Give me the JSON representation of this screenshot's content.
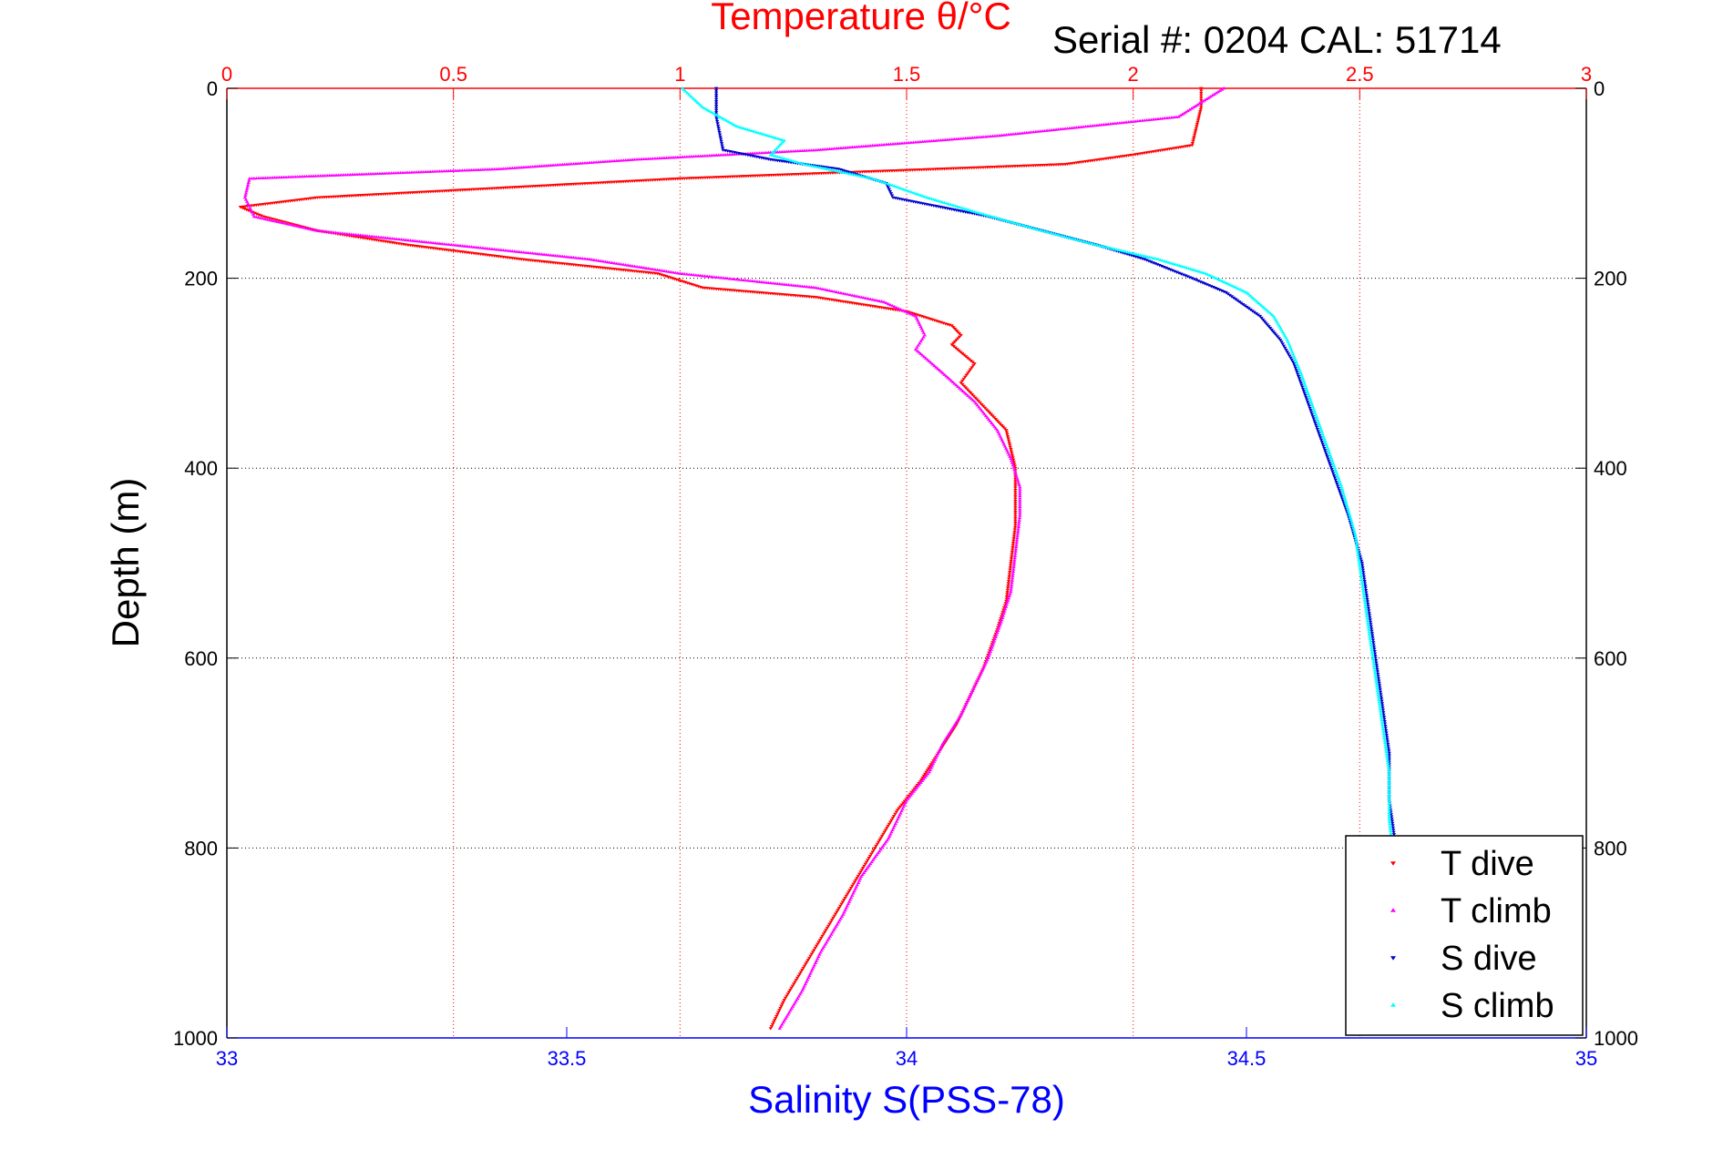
{
  "chart_data": {
    "type": "scatter",
    "title": "Temperature θ/°C",
    "subtitle": "Serial #: 0204  CAL: 51714",
    "ylabel": "Depth (m)",
    "xlabel": "Salinity S(PSS-78)",
    "y_axis": {
      "min": 0,
      "max": 1000,
      "inverted": true,
      "ticks": [
        "0",
        "200",
        "400",
        "600",
        "800",
        "1000"
      ],
      "tick_values": [
        0,
        200,
        400,
        600,
        800,
        1000
      ]
    },
    "top_axis": {
      "min": 0,
      "max": 3,
      "color": "#ff0000",
      "ticks": [
        "0",
        "0.5",
        "1",
        "1.5",
        "2",
        "2.5",
        "3"
      ],
      "tick_values": [
        0,
        0.5,
        1,
        1.5,
        2,
        2.5,
        3
      ]
    },
    "bottom_axis": {
      "min": 33,
      "max": 35,
      "color": "#0000ff",
      "ticks": [
        "33",
        "33.5",
        "34",
        "34.5",
        "35"
      ],
      "tick_values": [
        33,
        33.5,
        34,
        34.5,
        35
      ]
    },
    "grid": true,
    "legend_position": "bottom-right",
    "series": [
      {
        "name": "T dive",
        "axis": "top",
        "color": "#ff0000",
        "marker": "triangle-down",
        "points": [
          [
            2.15,
            0
          ],
          [
            2.15,
            20
          ],
          [
            2.14,
            40
          ],
          [
            2.13,
            60
          ],
          [
            2.0,
            70
          ],
          [
            1.85,
            80
          ],
          [
            1.0,
            95
          ],
          [
            0.6,
            105
          ],
          [
            0.2,
            115
          ],
          [
            0.03,
            125
          ],
          [
            0.08,
            135
          ],
          [
            0.2,
            150
          ],
          [
            0.4,
            165
          ],
          [
            0.65,
            180
          ],
          [
            0.95,
            195
          ],
          [
            1.05,
            210
          ],
          [
            1.3,
            220
          ],
          [
            1.5,
            235
          ],
          [
            1.6,
            250
          ],
          [
            1.62,
            260
          ],
          [
            1.6,
            270
          ],
          [
            1.65,
            290
          ],
          [
            1.62,
            310
          ],
          [
            1.68,
            340
          ],
          [
            1.72,
            360
          ],
          [
            1.73,
            380
          ],
          [
            1.74,
            400
          ],
          [
            1.74,
            430
          ],
          [
            1.74,
            460
          ],
          [
            1.73,
            500
          ],
          [
            1.72,
            540
          ],
          [
            1.7,
            570
          ],
          [
            1.67,
            610
          ],
          [
            1.64,
            640
          ],
          [
            1.61,
            670
          ],
          [
            1.57,
            700
          ],
          [
            1.53,
            730
          ],
          [
            1.48,
            760
          ],
          [
            1.43,
            800
          ],
          [
            1.38,
            840
          ],
          [
            1.33,
            880
          ],
          [
            1.28,
            920
          ],
          [
            1.23,
            960
          ],
          [
            1.2,
            990
          ]
        ]
      },
      {
        "name": "T climb",
        "axis": "top",
        "color": "#ff00ff",
        "marker": "triangle-up",
        "points": [
          [
            2.2,
            0
          ],
          [
            2.1,
            30
          ],
          [
            1.7,
            50
          ],
          [
            1.3,
            65
          ],
          [
            0.9,
            75
          ],
          [
            0.6,
            85
          ],
          [
            0.05,
            95
          ],
          [
            0.04,
            115
          ],
          [
            0.06,
            135
          ],
          [
            0.2,
            150
          ],
          [
            0.5,
            165
          ],
          [
            0.8,
            180
          ],
          [
            1.0,
            195
          ],
          [
            1.3,
            210
          ],
          [
            1.45,
            225
          ],
          [
            1.52,
            240
          ],
          [
            1.54,
            260
          ],
          [
            1.52,
            275
          ],
          [
            1.58,
            300
          ],
          [
            1.65,
            330
          ],
          [
            1.7,
            360
          ],
          [
            1.73,
            390
          ],
          [
            1.75,
            420
          ],
          [
            1.75,
            450
          ],
          [
            1.74,
            490
          ],
          [
            1.73,
            530
          ],
          [
            1.71,
            560
          ],
          [
            1.68,
            600
          ],
          [
            1.65,
            630
          ],
          [
            1.62,
            660
          ],
          [
            1.58,
            690
          ],
          [
            1.55,
            720
          ],
          [
            1.5,
            750
          ],
          [
            1.46,
            790
          ],
          [
            1.4,
            830
          ],
          [
            1.36,
            870
          ],
          [
            1.31,
            910
          ],
          [
            1.27,
            950
          ],
          [
            1.22,
            990
          ]
        ]
      },
      {
        "name": "S dive",
        "axis": "bottom",
        "color": "#0000cc",
        "marker": "triangle-down",
        "points": [
          [
            33.72,
            0
          ],
          [
            33.72,
            30
          ],
          [
            33.73,
            65
          ],
          [
            33.8,
            75
          ],
          [
            33.9,
            85
          ],
          [
            33.97,
            100
          ],
          [
            33.98,
            115
          ],
          [
            34.05,
            125
          ],
          [
            34.12,
            135
          ],
          [
            34.2,
            150
          ],
          [
            34.28,
            165
          ],
          [
            34.35,
            180
          ],
          [
            34.42,
            200
          ],
          [
            34.47,
            215
          ],
          [
            34.52,
            240
          ],
          [
            34.55,
            265
          ],
          [
            34.57,
            290
          ],
          [
            34.59,
            330
          ],
          [
            34.61,
            370
          ],
          [
            34.63,
            410
          ],
          [
            34.65,
            450
          ],
          [
            34.67,
            500
          ],
          [
            34.68,
            550
          ],
          [
            34.69,
            600
          ],
          [
            34.7,
            650
          ],
          [
            34.71,
            700
          ],
          [
            34.71,
            750
          ],
          [
            34.72,
            800
          ],
          [
            34.72,
            850
          ],
          [
            34.72,
            900
          ],
          [
            34.72,
            950
          ],
          [
            34.72,
            995
          ]
        ]
      },
      {
        "name": "S climb",
        "axis": "bottom",
        "color": "#00ffff",
        "marker": "triangle-up",
        "points": [
          [
            33.67,
            0
          ],
          [
            33.7,
            20
          ],
          [
            33.75,
            40
          ],
          [
            33.82,
            55
          ],
          [
            33.8,
            70
          ],
          [
            33.85,
            80
          ],
          [
            33.95,
            95
          ],
          [
            34.03,
            115
          ],
          [
            34.1,
            130
          ],
          [
            34.2,
            150
          ],
          [
            34.28,
            165
          ],
          [
            34.37,
            180
          ],
          [
            34.44,
            195
          ],
          [
            34.5,
            215
          ],
          [
            34.54,
            240
          ],
          [
            34.56,
            265
          ],
          [
            34.58,
            300
          ],
          [
            34.6,
            340
          ],
          [
            34.62,
            380
          ],
          [
            34.64,
            420
          ],
          [
            34.66,
            470
          ],
          [
            34.67,
            520
          ],
          [
            34.68,
            570
          ],
          [
            34.69,
            620
          ],
          [
            34.7,
            670
          ],
          [
            34.71,
            720
          ],
          [
            34.71,
            770
          ],
          [
            34.72,
            830
          ],
          [
            34.72,
            880
          ],
          [
            34.72,
            940
          ],
          [
            34.72,
            995
          ]
        ]
      }
    ]
  }
}
